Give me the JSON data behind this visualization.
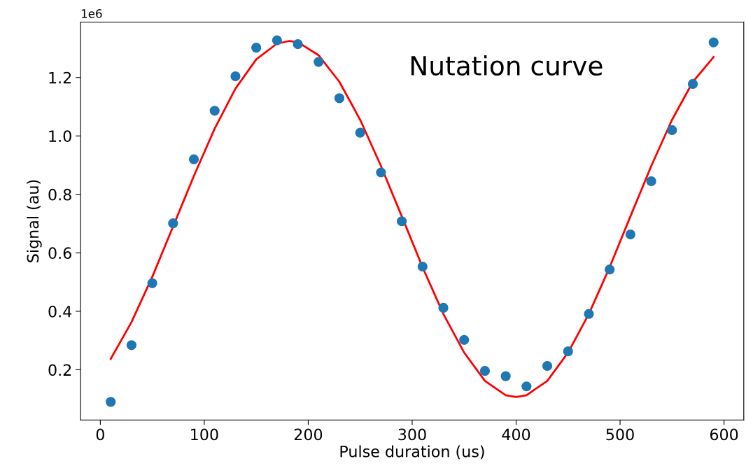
{
  "chart_data": {
    "type": "scatter",
    "xlabel": "Pulse duration (us)",
    "ylabel": "Signal (au)",
    "annotations": [
      "Nutation curve",
      "1e6"
    ],
    "series": [
      {
        "color": "#1f77b4",
        "marker": "circle",
        "x": [
          10,
          30,
          50,
          70,
          90,
          110,
          130,
          150,
          170,
          190,
          210,
          230,
          250,
          270,
          290,
          310,
          330,
          350,
          370,
          390,
          410,
          430,
          450,
          470,
          490,
          510,
          530,
          550,
          570,
          590
        ],
        "values": [
          0.09,
          0.284,
          0.496,
          0.701,
          0.92,
          1.086,
          1.204,
          1.302,
          1.327,
          1.314,
          1.253,
          1.129,
          1.011,
          0.875,
          0.708,
          0.553,
          0.412,
          0.302,
          0.196,
          0.178,
          0.143,
          0.213,
          0.263,
          0.391,
          0.543,
          0.663,
          0.845,
          1.02,
          1.178,
          1.32
        ]
      },
      {
        "type": "line",
        "color": "#ff0000",
        "marker": "none",
        "line_style": "solid",
        "x": [
          10,
          30,
          50,
          70,
          90,
          110,
          130,
          150,
          170,
          182,
          190,
          210,
          230,
          250,
          270,
          290,
          310,
          330,
          350,
          370,
          390,
          400,
          410,
          430,
          450,
          470,
          490,
          510,
          530,
          550,
          570,
          590
        ],
        "values": [
          0.237,
          0.363,
          0.518,
          0.69,
          0.863,
          1.025,
          1.162,
          1.262,
          1.316,
          1.325,
          1.321,
          1.276,
          1.185,
          1.055,
          0.897,
          0.725,
          0.551,
          0.391,
          0.259,
          0.162,
          0.113,
          0.107,
          0.113,
          0.162,
          0.259,
          0.391,
          0.551,
          0.725,
          0.897,
          1.055,
          1.185,
          1.27
        ]
      }
    ],
    "xlim": [
      -19,
      619
    ],
    "xticks": [
      0,
      100,
      200,
      300,
      400,
      500,
      600
    ],
    "ylim": [
      0.028,
      1.389
    ],
    "yticks": [
      0.2,
      0.4,
      0.6,
      0.8,
      {
        "value": 1.0,
        "label": "1.0"
      },
      1.2
    ],
    "grid": false
  }
}
